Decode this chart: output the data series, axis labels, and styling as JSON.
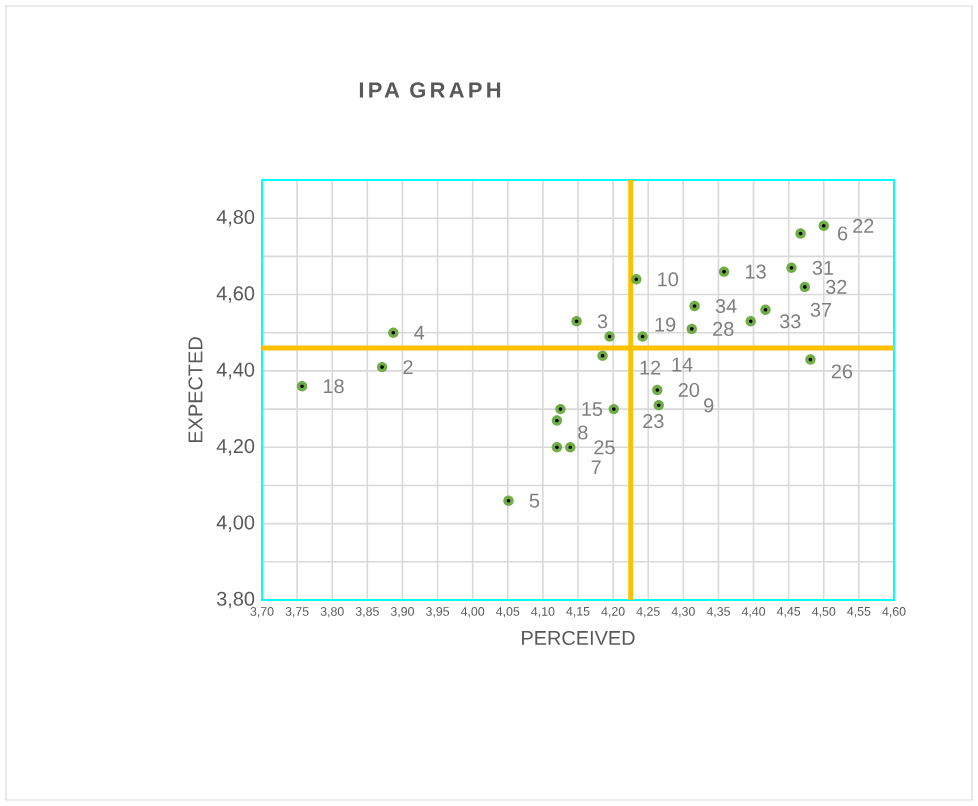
{
  "chart_data": {
    "type": "scatter",
    "title": "IPA GRAPH",
    "xlabel": "PERCEIVED",
    "ylabel": "EXPECTED",
    "series": [
      {
        "color": "#70ad47",
        "x": [
          3.757,
          3.871,
          3.887,
          4.051,
          4.125,
          4.12,
          4.12,
          4.139,
          4.148,
          4.185,
          4.195,
          4.201,
          4.233,
          4.242,
          4.263,
          4.265,
          4.312,
          4.316,
          4.358,
          4.396,
          4.417,
          4.454,
          4.467,
          4.5,
          4.473,
          4.481
        ],
        "values": [
          4.36,
          4.41,
          4.5,
          4.06,
          4.3,
          4.27,
          4.2,
          4.2,
          4.53,
          4.44,
          4.49,
          4.3,
          4.64,
          4.49,
          4.35,
          4.31,
          4.51,
          4.57,
          4.66,
          4.53,
          4.56,
          4.67,
          4.76,
          4.78,
          4.62,
          4.43
        ]
      }
    ],
    "annotations": [
      {
        "text": "18",
        "x": 3.757,
        "y": 4.36
      },
      {
        "text": "2",
        "x": 3.871,
        "y": 4.41
      },
      {
        "text": "4",
        "x": 3.887,
        "y": 4.5
      },
      {
        "text": "5",
        "x": 4.051,
        "y": 4.06
      },
      {
        "text": "15",
        "x": 4.125,
        "y": 4.3
      },
      {
        "text": "8",
        "x": 4.12,
        "y": 4.27
      },
      {
        "text": "25",
        "x": 4.12,
        "y": 4.2
      },
      {
        "text": "7",
        "x": 4.139,
        "y": 4.2
      },
      {
        "text": "3",
        "x": 4.148,
        "y": 4.53
      },
      {
        "text": "12",
        "x": 4.185,
        "y": 4.44
      },
      {
        "text": "19",
        "x": 4.195,
        "y": 4.49
      },
      {
        "text": "23",
        "x": 4.201,
        "y": 4.3
      },
      {
        "text": "10",
        "x": 4.233,
        "y": 4.64
      },
      {
        "text": "14",
        "x": 4.242,
        "y": 4.49
      },
      {
        "text": "20",
        "x": 4.263,
        "y": 4.35
      },
      {
        "text": "9",
        "x": 4.265,
        "y": 4.31
      },
      {
        "text": "28",
        "x": 4.312,
        "y": 4.51
      },
      {
        "text": "34",
        "x": 4.316,
        "y": 4.57
      },
      {
        "text": "13",
        "x": 4.358,
        "y": 4.66
      },
      {
        "text": "33",
        "x": 4.396,
        "y": 4.53
      },
      {
        "text": "37",
        "x": 4.417,
        "y": 4.56
      },
      {
        "text": "31",
        "x": 4.454,
        "y": 4.67
      },
      {
        "text": "6",
        "x": 4.467,
        "y": 4.76
      },
      {
        "text": "22",
        "x": 4.5,
        "y": 4.78
      },
      {
        "text": "32",
        "x": 4.473,
        "y": 4.62
      },
      {
        "text": "26",
        "x": 4.481,
        "y": 4.43
      }
    ],
    "ref_lines": [
      {
        "axis": "x",
        "value": 4.225,
        "color": "#ffc000"
      },
      {
        "axis": "y",
        "value": 4.46,
        "color": "#ffc000"
      }
    ],
    "xlim": [
      3.7,
      4.6
    ],
    "xticks": [
      {
        "value": 3.7,
        "label": "3,70"
      },
      {
        "value": 3.75,
        "label": "3,75"
      },
      {
        "value": 3.8,
        "label": "3,80"
      },
      {
        "value": 3.85,
        "label": "3,85"
      },
      {
        "value": 3.9,
        "label": "3,90"
      },
      {
        "value": 3.95,
        "label": "3,95"
      },
      {
        "value": 4.0,
        "label": "4,00"
      },
      {
        "value": 4.05,
        "label": "4,05"
      },
      {
        "value": 4.1,
        "label": "4,10"
      },
      {
        "value": 4.15,
        "label": "4,15"
      },
      {
        "value": 4.2,
        "label": "4,20"
      },
      {
        "value": 4.25,
        "label": "4,25"
      },
      {
        "value": 4.3,
        "label": "4,30"
      },
      {
        "value": 4.35,
        "label": "4,35"
      },
      {
        "value": 4.4,
        "label": "4,40"
      },
      {
        "value": 4.45,
        "label": "4,45"
      },
      {
        "value": 4.5,
        "label": "4,50"
      },
      {
        "value": 4.55,
        "label": "4,55"
      },
      {
        "value": 4.6,
        "label": "4,60"
      }
    ],
    "ylim": [
      3.8,
      4.9
    ],
    "yticks": [
      {
        "value": 3.8,
        "label": "3,80"
      },
      {
        "value": 4.0,
        "label": "4,00"
      },
      {
        "value": 4.2,
        "label": "4,20"
      },
      {
        "value": 4.4,
        "label": "4,40"
      },
      {
        "value": 4.6,
        "label": "4,60"
      },
      {
        "value": 4.8,
        "label": "4,80"
      }
    ],
    "grid": true,
    "marker": "circle"
  }
}
